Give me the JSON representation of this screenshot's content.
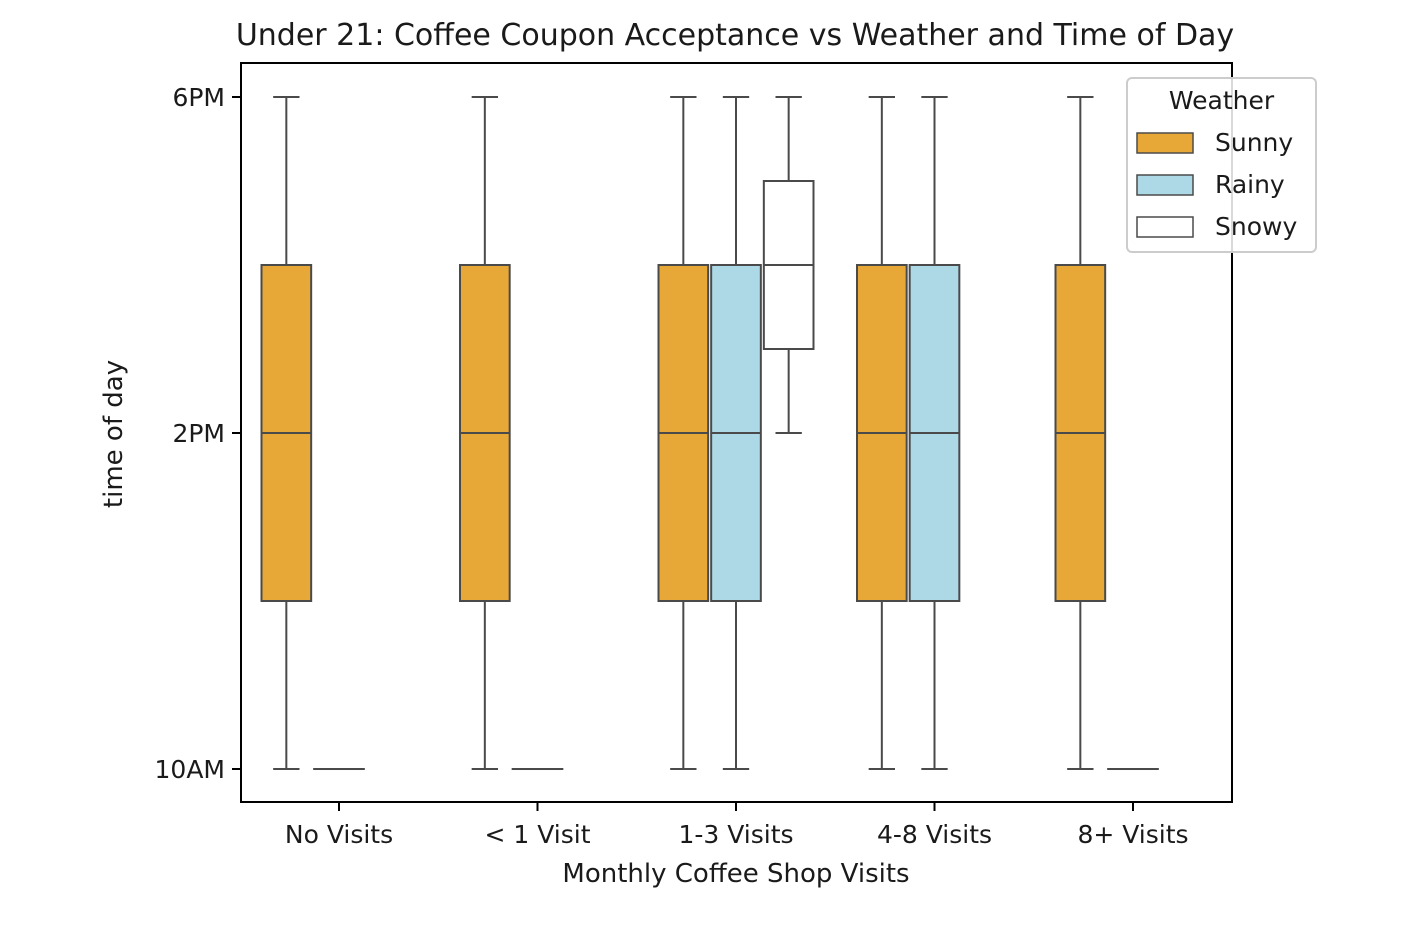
{
  "chart_data": {
    "type": "box",
    "title": "Under 21: Coffee Coupon Acceptance vs Weather and Time of Day",
    "xlabel": "Monthly Coffee Shop Visits",
    "ylabel": "time of day",
    "categories": [
      "No Visits",
      "< 1 Visit",
      "1-3 Visits",
      "4-8 Visits",
      "8+ Visits"
    ],
    "y_ticks": [
      {
        "value": 10,
        "label": "10AM"
      },
      {
        "value": 14,
        "label": "2PM"
      },
      {
        "value": 18,
        "label": "6PM"
      }
    ],
    "ylim": [
      9.6,
      18.4
    ],
    "grid": false,
    "legend": {
      "title": "Weather",
      "position": "top-right"
    },
    "series": [
      {
        "name": "Sunny",
        "color": "#E8A838",
        "boxes": [
          {
            "category": "No Visits",
            "whisker_low": 10,
            "q1": 12,
            "median": 14,
            "q3": 16,
            "whisker_high": 18
          },
          {
            "category": "< 1 Visit",
            "whisker_low": 10,
            "q1": 12,
            "median": 14,
            "q3": 16,
            "whisker_high": 18
          },
          {
            "category": "1-3 Visits",
            "whisker_low": 10,
            "q1": 12,
            "median": 14,
            "q3": 16,
            "whisker_high": 18
          },
          {
            "category": "4-8 Visits",
            "whisker_low": 10,
            "q1": 12,
            "median": 14,
            "q3": 16,
            "whisker_high": 18
          },
          {
            "category": "8+ Visits",
            "whisker_low": 10,
            "q1": 12,
            "median": 14,
            "q3": 16,
            "whisker_high": 18
          }
        ]
      },
      {
        "name": "Rainy",
        "color": "#ADD8E6",
        "boxes": [
          {
            "category": "No Visits",
            "whisker_low": 10,
            "q1": 10,
            "median": 10,
            "q3": 10,
            "whisker_high": 10
          },
          {
            "category": "< 1 Visit",
            "whisker_low": 10,
            "q1": 10,
            "median": 10,
            "q3": 10,
            "whisker_high": 10
          },
          {
            "category": "1-3 Visits",
            "whisker_low": 10,
            "q1": 12,
            "median": 14,
            "q3": 16,
            "whisker_high": 18
          },
          {
            "category": "4-8 Visits",
            "whisker_low": 10,
            "q1": 12,
            "median": 14,
            "q3": 16,
            "whisker_high": 18
          },
          {
            "category": "8+ Visits",
            "whisker_low": 10,
            "q1": 10,
            "median": 10,
            "q3": 10,
            "whisker_high": 10
          }
        ]
      },
      {
        "name": "Snowy",
        "color": "#FFFFFF",
        "boxes": [
          {
            "category": "1-3 Visits",
            "whisker_low": 14,
            "q1": 15,
            "median": 16,
            "q3": 17,
            "whisker_high": 18
          }
        ]
      }
    ]
  }
}
